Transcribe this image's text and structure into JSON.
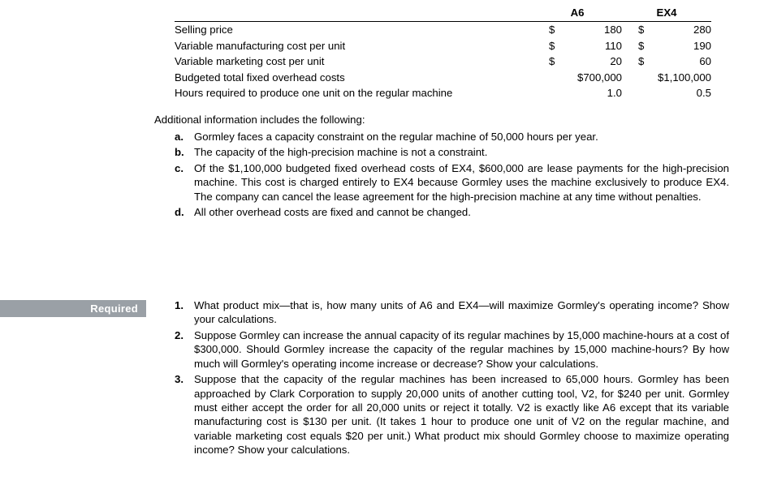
{
  "table": {
    "headers": {
      "col1": "A6",
      "col2": "EX4"
    },
    "rows": [
      {
        "label": "Selling price",
        "a6_sym": "$",
        "a6_val": "180",
        "ex4_sym": "$",
        "ex4_val": "280"
      },
      {
        "label": "Variable manufacturing cost per unit",
        "a6_sym": "$",
        "a6_val": "110",
        "ex4_sym": "$",
        "ex4_val": "190"
      },
      {
        "label": "Variable marketing cost per unit",
        "a6_sym": "$",
        "a6_val": "20",
        "ex4_sym": "$",
        "ex4_val": "60"
      },
      {
        "label": "Budgeted total fixed overhead costs",
        "a6_sym": "",
        "a6_val": "$700,000",
        "ex4_sym": "",
        "ex4_val": "$1,100,000"
      },
      {
        "label": "Hours required to produce one unit on the regular machine",
        "a6_sym": "",
        "a6_val": "1.0",
        "ex4_sym": "",
        "ex4_val": "0.5"
      }
    ]
  },
  "additional": {
    "lead": "Additional information includes the following:",
    "items": [
      {
        "mk": "a.",
        "tx": "Gormley faces a capacity constraint on the regular machine of 50,000 hours per year."
      },
      {
        "mk": "b.",
        "tx": "The capacity of the high-precision machine is not a constraint."
      },
      {
        "mk": "c.",
        "tx": "Of the $1,100,000 budgeted fixed overhead costs of EX4, $600,000 are lease payments for the high-precision machine. This cost is charged entirely to EX4 because Gormley uses the machine exclusively to produce EX4. The company can cancel the lease agreement for the high-precision machine at any time without penalties."
      },
      {
        "mk": "d.",
        "tx": "All other overhead costs are fixed and cannot be changed."
      }
    ]
  },
  "required_label": "Required",
  "required": {
    "items": [
      {
        "mk": "1.",
        "tx": "What product mix—that is, how many units of A6 and EX4—will maximize Gormley's operating income? Show your calculations."
      },
      {
        "mk": "2.",
        "tx": "Suppose Gormley can increase the annual capacity of its regular machines by 15,000 machine-hours at a cost of $300,000. Should Gormley increase the capacity of the regular machines by 15,000 machine-hours? By how much will Gormley's operating income increase or decrease? Show your calculations."
      },
      {
        "mk": "3.",
        "tx": "Suppose that the capacity of the regular machines has been increased to 65,000 hours. Gormley has been approached by Clark Corporation to supply 20,000 units of another cutting tool, V2, for $240 per unit. Gormley must either accept the order for all 20,000 units or reject it totally. V2 is exactly like A6 except that its variable manufacturing cost is $130 per unit. (It takes 1 hour to produce one unit of V2 on the regular machine, and variable marketing cost equals $20 per unit.) What product mix should Gormley choose to maximize operating income? Show your calculations."
      }
    ]
  }
}
